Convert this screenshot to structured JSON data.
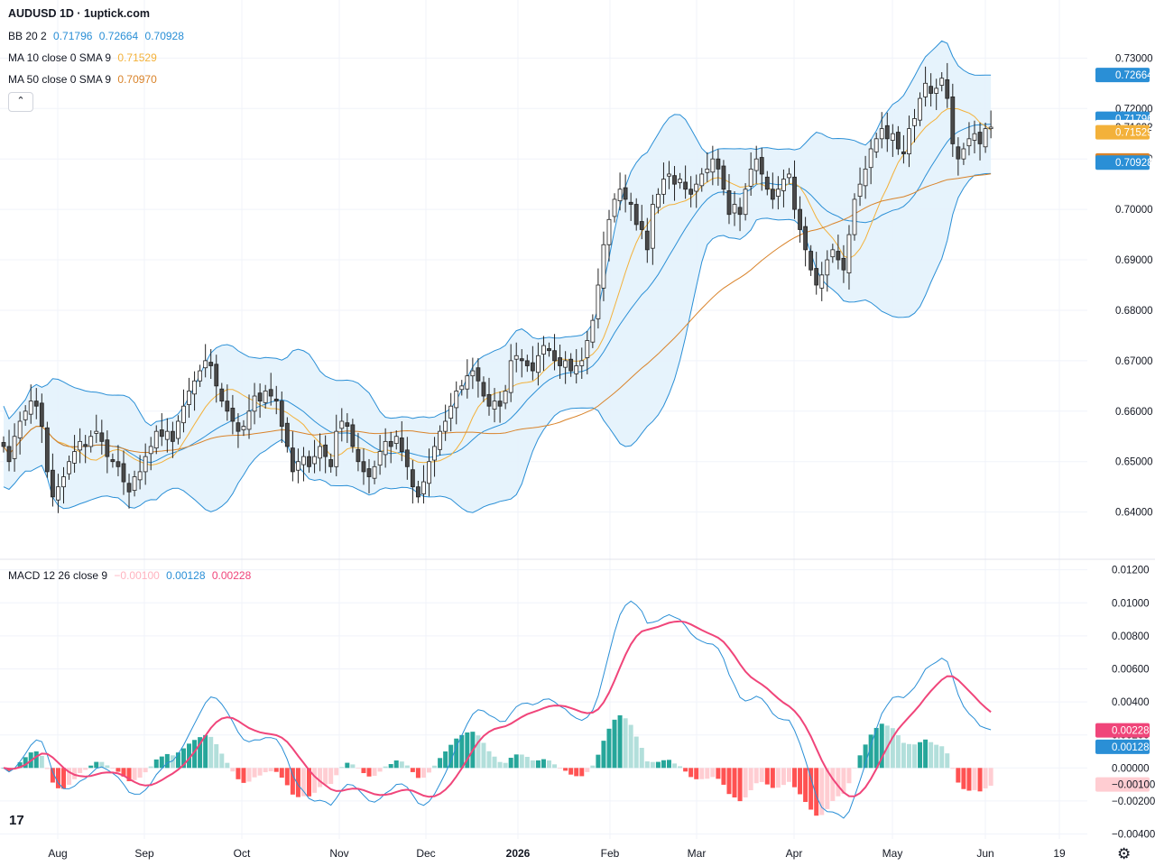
{
  "header": {
    "title": "AUDUSD 1D · 1uptick.com",
    "bb_label": "BB 20 2",
    "bb_values": [
      "0.71796",
      "0.72664",
      "0.70928"
    ],
    "ma10_label": "MA 10 close 0 SMA 9",
    "ma10_value": "0.71529",
    "ma50_label": "MA 50 close 0 SMA 9",
    "ma50_value": "0.70970",
    "macd_label": "MACD 12 26 close 9",
    "macd_values": [
      "−0.00100",
      "0.00128",
      "0.00228"
    ]
  },
  "icons": {
    "collapse": "chevron-up-icon",
    "logo": "tradingview-logo",
    "settings": "gear-icon"
  },
  "colors": {
    "up_candle": "#ffffff",
    "down_candle": "#4a4a4a",
    "bb_band": "#2a8fd6",
    "bb_fill": "#e3f2fc",
    "ma10": "#f3b13a",
    "ma50": "#d9832a",
    "macd_line": "#2a8fd6",
    "signal_line": "#f0457a",
    "hist_up_strong": "#26a69a",
    "hist_up_weak": "#b2dfdb",
    "hist_down_strong": "#ff5252",
    "hist_down_weak": "#ffcdd2"
  },
  "chart_data": [
    {
      "type": "candlestick",
      "title": "AUDUSD 1D",
      "price_axis_ticks": [
        "0.73000",
        "0.72000",
        "0.71000",
        "0.70000",
        "0.69000",
        "0.68000",
        "0.67000",
        "0.66000",
        "0.65000",
        "0.64000"
      ],
      "price_axis_tick_values": [
        0.73,
        0.72,
        0.71,
        0.7,
        0.69,
        0.68,
        0.67,
        0.66,
        0.65,
        0.64
      ],
      "ylim": [
        0.6335,
        0.7365
      ],
      "time_axis_labels": [
        "Aug",
        "Sep",
        "Oct",
        "Nov",
        "Dec",
        "2026",
        "Feb",
        "Mar",
        "Apr",
        "May",
        "Jun",
        "19"
      ],
      "price_labels": [
        {
          "text": "0.72664",
          "value": 0.72664,
          "color": "#2a8fd6",
          "filled": true
        },
        {
          "text": "0.71796",
          "value": 0.71796,
          "color": "#2a8fd6",
          "filled": true
        },
        {
          "text": "0.71632",
          "value": 0.71632,
          "color": "#ffffff",
          "filled": false
        },
        {
          "text": "0.71529",
          "value": 0.71529,
          "color": "#f3b13a",
          "filled": true
        },
        {
          "text": "0.70970",
          "value": 0.7097,
          "color": "#d9832a",
          "filled": true
        },
        {
          "text": "0.70928",
          "value": 0.70928,
          "color": "#2a8fd6",
          "filled": true
        }
      ],
      "x_range": [
        0,
        178
      ],
      "closes": [
        0.653,
        0.65,
        0.655,
        0.658,
        0.66,
        0.662,
        0.661,
        0.657,
        0.648,
        0.643,
        0.645,
        0.647,
        0.65,
        0.652,
        0.654,
        0.653,
        0.655,
        0.656,
        0.654,
        0.651,
        0.65,
        0.649,
        0.646,
        0.644,
        0.647,
        0.648,
        0.651,
        0.653,
        0.656,
        0.655,
        0.656,
        0.654,
        0.658,
        0.661,
        0.664,
        0.666,
        0.668,
        0.67,
        0.669,
        0.665,
        0.662,
        0.66,
        0.658,
        0.656,
        0.657,
        0.66,
        0.663,
        0.662,
        0.664,
        0.663,
        0.662,
        0.657,
        0.653,
        0.648,
        0.65,
        0.651,
        0.649,
        0.651,
        0.653,
        0.651,
        0.649,
        0.656,
        0.658,
        0.657,
        0.653,
        0.65,
        0.648,
        0.647,
        0.649,
        0.652,
        0.654,
        0.653,
        0.655,
        0.652,
        0.649,
        0.645,
        0.643,
        0.646,
        0.65,
        0.653,
        0.656,
        0.658,
        0.661,
        0.664,
        0.665,
        0.667,
        0.668,
        0.666,
        0.663,
        0.661,
        0.662,
        0.661,
        0.664,
        0.67,
        0.671,
        0.67,
        0.669,
        0.668,
        0.671,
        0.673,
        0.672,
        0.67,
        0.669,
        0.67,
        0.668,
        0.669,
        0.67,
        0.674,
        0.678,
        0.685,
        0.693,
        0.698,
        0.702,
        0.704,
        0.702,
        0.701,
        0.697,
        0.696,
        0.692,
        0.701,
        0.703,
        0.706,
        0.707,
        0.705,
        0.706,
        0.704,
        0.703,
        0.705,
        0.707,
        0.708,
        0.71,
        0.708,
        0.704,
        0.699,
        0.701,
        0.699,
        0.704,
        0.708,
        0.71,
        0.707,
        0.704,
        0.702,
        0.704,
        0.706,
        0.707,
        0.7,
        0.696,
        0.692,
        0.688,
        0.685,
        0.687,
        0.69,
        0.692,
        0.69,
        0.688,
        0.695,
        0.702,
        0.705,
        0.708,
        0.712,
        0.714,
        0.716,
        0.714,
        0.715,
        0.712,
        0.711,
        0.716,
        0.718,
        0.722,
        0.725,
        0.723,
        0.724,
        0.726,
        0.722,
        0.713,
        0.71,
        0.712,
        0.714,
        0.715,
        0.713,
        0.716,
        0.7163
      ]
    },
    {
      "type": "macd",
      "title": "MACD 12 26 close 9",
      "axis_ticks": [
        "0.01200",
        "0.01000",
        "0.00800",
        "0.00600",
        "0.00400",
        "0.00200",
        "0.00000",
        "−0.00200",
        "−0.00400"
      ],
      "axis_tick_values": [
        0.012,
        0.01,
        0.008,
        0.006,
        0.004,
        0.002,
        0.0,
        -0.002,
        -0.004
      ],
      "ylim": [
        -0.0043,
        0.0122
      ],
      "value_labels": [
        {
          "text": "0.00228",
          "value": 0.00228,
          "color": "#f0457a"
        },
        {
          "text": "0.00128",
          "value": 0.00128,
          "color": "#2a8fd6"
        },
        {
          "text": "−0.00100",
          "value": -0.001,
          "color": "#ffcdd2"
        }
      ]
    }
  ]
}
